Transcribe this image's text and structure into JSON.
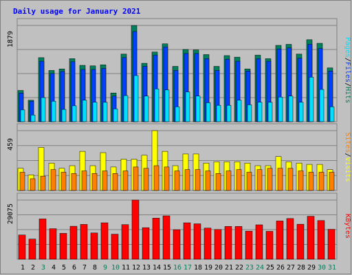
{
  "title": "Daily usage for January 2021",
  "colors": {
    "background": "#c0c0c0",
    "hits": "#00805c",
    "files": "#0040ff",
    "pages": "#00e0ff",
    "visits": "#ffff00",
    "sites": "#ff8000",
    "kbytes": "#ff0000",
    "title": "#0000ff",
    "weekend_label": "#00805c",
    "weekday_label": "#000000"
  },
  "chart_data": [
    {
      "type": "bar",
      "panel": "hits-files-pages",
      "categories": [
        "1",
        "2",
        "3",
        "4",
        "5",
        "6",
        "7",
        "8",
        "9",
        "10",
        "11",
        "12",
        "13",
        "14",
        "15",
        "16",
        "17",
        "18",
        "19",
        "20",
        "21",
        "22",
        "23",
        "24",
        "25",
        "26",
        "27",
        "28",
        "29",
        "30",
        "31"
      ],
      "weekend_days": [
        "3",
        "9",
        "10",
        "16",
        "17",
        "23",
        "24",
        "30",
        "31"
      ],
      "ymax_label": "1879",
      "ylim": [
        0,
        1879
      ],
      "axis_label_parts": [
        {
          "text": "Pages",
          "series": "pages"
        },
        {
          "text": "/",
          "series": "separator"
        },
        {
          "text": "Files",
          "series": "files"
        },
        {
          "text": "/",
          "series": "separator"
        },
        {
          "text": "Hits",
          "series": "hits"
        }
      ],
      "series": [
        {
          "name": "Hits",
          "key": "hits",
          "values": [
            610,
            420,
            1250,
            1000,
            1030,
            1230,
            1100,
            1090,
            1110,
            560,
            1320,
            1879,
            1140,
            1360,
            1520,
            1080,
            1410,
            1400,
            1310,
            1080,
            1290,
            1260,
            1030,
            1300,
            1230,
            1490,
            1510,
            1320,
            1600,
            1530,
            1050
          ]
        },
        {
          "name": "Files",
          "key": "files",
          "values": [
            560,
            400,
            1180,
            940,
            980,
            1170,
            1020,
            1020,
            1040,
            500,
            1250,
            1760,
            1080,
            1300,
            1460,
            1000,
            1330,
            1330,
            1230,
            1000,
            1220,
            1180,
            990,
            1230,
            1180,
            1420,
            1440,
            1240,
            1510,
            1430,
            990
          ]
        },
        {
          "name": "Pages",
          "key": "pages",
          "values": [
            230,
            130,
            470,
            400,
            240,
            310,
            420,
            380,
            380,
            250,
            510,
            900,
            500,
            640,
            620,
            290,
            580,
            500,
            370,
            320,
            320,
            420,
            330,
            380,
            380,
            480,
            500,
            380,
            870,
            630,
            290
          ]
        }
      ]
    },
    {
      "type": "bar",
      "panel": "visits-sites",
      "categories": [
        "1",
        "2",
        "3",
        "4",
        "5",
        "6",
        "7",
        "8",
        "9",
        "10",
        "11",
        "12",
        "13",
        "14",
        "15",
        "16",
        "17",
        "18",
        "19",
        "20",
        "21",
        "22",
        "23",
        "24",
        "25",
        "26",
        "27",
        "28",
        "29",
        "30",
        "31"
      ],
      "ymax_label": "459",
      "ylim": [
        0,
        459
      ],
      "axis_label_parts": [
        {
          "text": "Sites",
          "series": "sites"
        },
        {
          "text": "/",
          "series": "separator"
        },
        {
          "text": "Visits",
          "series": "visits"
        }
      ],
      "series": [
        {
          "name": "Visits",
          "key": "visits",
          "values": [
            170,
            120,
            330,
            210,
            170,
            190,
            300,
            190,
            290,
            180,
            240,
            240,
            270,
            459,
            300,
            190,
            280,
            280,
            210,
            220,
            220,
            220,
            210,
            190,
            190,
            260,
            220,
            210,
            200,
            200,
            160
          ]
        },
        {
          "name": "Sites",
          "key": "sites",
          "values": [
            140,
            90,
            110,
            160,
            140,
            130,
            150,
            130,
            150,
            130,
            150,
            180,
            170,
            190,
            180,
            150,
            160,
            160,
            150,
            130,
            150,
            160,
            140,
            160,
            170,
            170,
            170,
            150,
            140,
            140,
            140
          ]
        }
      ]
    },
    {
      "type": "bar",
      "panel": "kbytes",
      "categories": [
        "1",
        "2",
        "3",
        "4",
        "5",
        "6",
        "7",
        "8",
        "9",
        "10",
        "11",
        "12",
        "13",
        "14",
        "15",
        "16",
        "17",
        "18",
        "19",
        "20",
        "21",
        "22",
        "23",
        "24",
        "25",
        "26",
        "27",
        "28",
        "29",
        "30",
        "31"
      ],
      "ymax_label": "29075",
      "ylim": [
        0,
        29075
      ],
      "axis_label_parts": [
        {
          "text": "KBytes",
          "series": "kbytes"
        }
      ],
      "series": [
        {
          "name": "KBytes",
          "key": "kbytes",
          "values": [
            11900,
            9900,
            19800,
            15000,
            12700,
            16200,
            17100,
            12900,
            17900,
            12300,
            17000,
            29075,
            15500,
            20200,
            21300,
            14500,
            17900,
            17400,
            15300,
            14600,
            16100,
            16100,
            13800,
            16900,
            13700,
            18800,
            20000,
            17200,
            21100,
            19000,
            14700
          ]
        }
      ]
    }
  ]
}
